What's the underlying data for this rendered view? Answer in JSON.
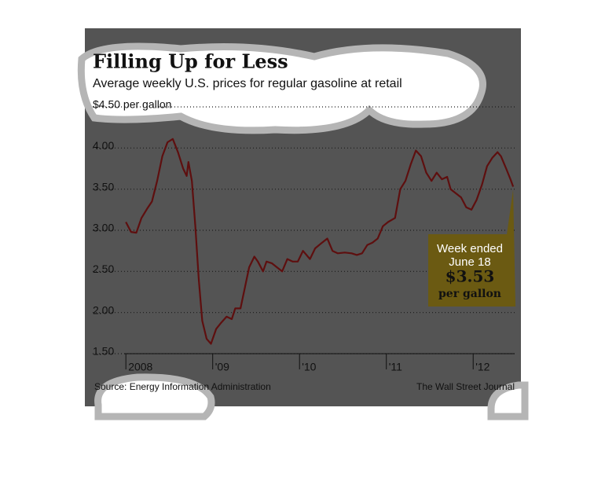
{
  "chart_data": {
    "type": "line",
    "title": "Filling Up for Less",
    "subtitle": "Average weekly U.S. prices for regular gasoline at retail",
    "source": "Source: Energy Information Administration",
    "credit": "The Wall Street Journal",
    "annotation": {
      "lines": [
        "Week ended",
        "June 18"
      ],
      "value": "$3.53",
      "unit": "per gallon"
    },
    "color": "#5e0f0f",
    "grid": true,
    "x": [
      2008.0,
      2008.06,
      2008.12,
      2008.18,
      2008.25,
      2008.3,
      2008.36,
      2008.42,
      2008.48,
      2008.54,
      2008.6,
      2008.66,
      2008.7,
      2008.72,
      2008.76,
      2008.8,
      2008.84,
      2008.88,
      2008.93,
      2008.98,
      2009.04,
      2009.1,
      2009.16,
      2009.22,
      2009.26,
      2009.32,
      2009.36,
      2009.42,
      2009.48,
      2009.52,
      2009.58,
      2009.62,
      2009.68,
      2009.74,
      2009.8,
      2009.86,
      2009.92,
      2009.98,
      2010.04,
      2010.12,
      2010.18,
      2010.26,
      2010.32,
      2010.38,
      2010.44,
      2010.52,
      2010.6,
      2010.66,
      2010.72,
      2010.78,
      2010.84,
      2010.9,
      2010.96,
      2011.02,
      2011.1,
      2011.16,
      2011.22,
      2011.28,
      2011.34,
      2011.4,
      2011.46,
      2011.52,
      2011.58,
      2011.64,
      2011.7,
      2011.74,
      2011.8,
      2011.86,
      2011.92,
      2011.98,
      2012.04,
      2012.1,
      2012.16,
      2012.22,
      2012.28,
      2012.32,
      2012.38,
      2012.43,
      2012.46
    ],
    "values": [
      3.1,
      2.98,
      2.97,
      3.15,
      3.27,
      3.35,
      3.6,
      3.9,
      4.07,
      4.11,
      3.95,
      3.75,
      3.66,
      3.83,
      3.6,
      3.05,
      2.4,
      1.9,
      1.68,
      1.62,
      1.8,
      1.88,
      1.95,
      1.92,
      2.05,
      2.05,
      2.25,
      2.55,
      2.68,
      2.62,
      2.5,
      2.62,
      2.6,
      2.55,
      2.5,
      2.65,
      2.62,
      2.62,
      2.75,
      2.65,
      2.78,
      2.85,
      2.9,
      2.75,
      2.72,
      2.73,
      2.72,
      2.7,
      2.72,
      2.82,
      2.85,
      2.9,
      3.05,
      3.1,
      3.15,
      3.5,
      3.6,
      3.8,
      3.97,
      3.9,
      3.7,
      3.6,
      3.7,
      3.62,
      3.65,
      3.5,
      3.45,
      3.4,
      3.28,
      3.25,
      3.37,
      3.55,
      3.78,
      3.88,
      3.95,
      3.9,
      3.75,
      3.62,
      3.53
    ],
    "xlim": [
      2007.6,
      2012.55
    ],
    "xticks": [
      {
        "value": 2008,
        "label": "2008"
      },
      {
        "value": 2009,
        "label": "'09"
      },
      {
        "value": 2010,
        "label": "'10"
      },
      {
        "value": 2011,
        "label": "'11"
      },
      {
        "value": 2012,
        "label": "'12"
      }
    ],
    "ylim": [
      1.5,
      4.5
    ],
    "yticks": [
      {
        "value": 1.5,
        "label": "1.50"
      },
      {
        "value": 2,
        "label": "2.00"
      },
      {
        "value": 2.5,
        "label": "2.50"
      },
      {
        "value": 3,
        "label": "3.00"
      },
      {
        "value": 3.5,
        "label": "3.50"
      },
      {
        "value": 4,
        "label": "4.00"
      },
      {
        "value": 4.5,
        "label": "$4.50 per gallon"
      }
    ]
  }
}
